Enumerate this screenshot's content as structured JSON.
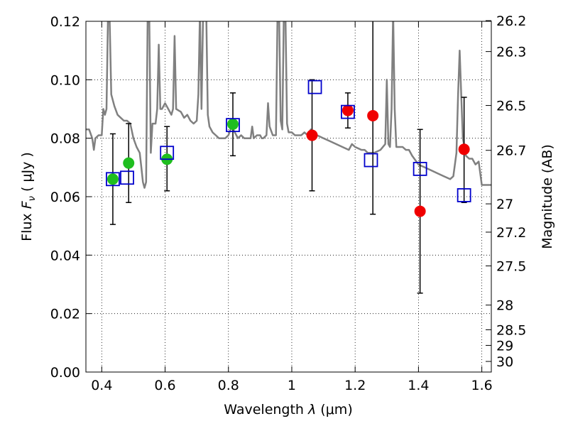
{
  "chart_data": {
    "type": "scatter",
    "xlabel_prefix": "Wavelength ",
    "xlabel_symbol": "λ",
    "xlabel_unit": " (μm)",
    "ylabel_prefix": "Flux ",
    "ylabel_symbol": "F",
    "ylabel_sub": "ν",
    "ylabel_unit": " ( μJy )",
    "y2label": "Magnitude (AB)",
    "xlim": [
      0.35,
      1.63
    ],
    "ylim": [
      0.0,
      0.12
    ],
    "grid": true,
    "x_ticks": [
      {
        "value": 0.4,
        "label": "0.4"
      },
      {
        "value": 0.6,
        "label": "0.6"
      },
      {
        "value": 0.8,
        "label": "0.8"
      },
      {
        "value": 1.0,
        "label": "1"
      },
      {
        "value": 1.2,
        "label": "1.2"
      },
      {
        "value": 1.4,
        "label": "1.4"
      },
      {
        "value": 1.6,
        "label": "1.6"
      }
    ],
    "y_ticks": [
      {
        "value": 0.0,
        "label": "0.00"
      },
      {
        "value": 0.02,
        "label": "0.02"
      },
      {
        "value": 0.04,
        "label": "0.04"
      },
      {
        "value": 0.06,
        "label": "0.06"
      },
      {
        "value": 0.08,
        "label": "0.08"
      },
      {
        "value": 0.1,
        "label": "0.10"
      },
      {
        "value": 0.12,
        "label": "0.12"
      }
    ],
    "mag_ticks": [
      {
        "mag": 26.2,
        "label": "26.2"
      },
      {
        "mag": 26.3,
        "label": "26.3"
      },
      {
        "mag": 26.5,
        "label": "26.5"
      },
      {
        "mag": 26.7,
        "label": "26.7"
      },
      {
        "mag": 27.0,
        "label": "27"
      },
      {
        "mag": 27.2,
        "label": "27.2"
      },
      {
        "mag": 27.5,
        "label": "27.5"
      },
      {
        "mag": 28.0,
        "label": "28"
      },
      {
        "mag": 28.5,
        "label": "28.5"
      },
      {
        "mag": 29.0,
        "label": "29"
      },
      {
        "mag": 30.0,
        "label": "30"
      }
    ],
    "series": [
      {
        "name": "model-sed",
        "kind": "line",
        "color": "#808080",
        "points": [
          [
            0.35,
            0.083
          ],
          [
            0.36,
            0.083
          ],
          [
            0.37,
            0.08
          ],
          [
            0.375,
            0.076
          ],
          [
            0.38,
            0.08
          ],
          [
            0.39,
            0.081
          ],
          [
            0.4,
            0.081
          ],
          [
            0.405,
            0.09
          ],
          [
            0.41,
            0.088
          ],
          [
            0.415,
            0.09
          ],
          [
            0.42,
            0.123
          ],
          [
            0.425,
            0.12
          ],
          [
            0.43,
            0.095
          ],
          [
            0.44,
            0.091
          ],
          [
            0.45,
            0.088
          ],
          [
            0.46,
            0.087
          ],
          [
            0.47,
            0.086
          ],
          [
            0.48,
            0.086
          ],
          [
            0.49,
            0.085
          ],
          [
            0.5,
            0.08
          ],
          [
            0.51,
            0.077
          ],
          [
            0.52,
            0.075
          ],
          [
            0.525,
            0.07
          ],
          [
            0.53,
            0.065
          ],
          [
            0.535,
            0.063
          ],
          [
            0.54,
            0.065
          ],
          [
            0.545,
            0.123
          ],
          [
            0.55,
            0.123
          ],
          [
            0.555,
            0.075
          ],
          [
            0.56,
            0.085
          ],
          [
            0.57,
            0.085
          ],
          [
            0.575,
            0.09
          ],
          [
            0.58,
            0.112
          ],
          [
            0.585,
            0.09
          ],
          [
            0.59,
            0.09
          ],
          [
            0.6,
            0.092
          ],
          [
            0.61,
            0.09
          ],
          [
            0.62,
            0.088
          ],
          [
            0.625,
            0.09
          ],
          [
            0.63,
            0.115
          ],
          [
            0.635,
            0.09
          ],
          [
            0.65,
            0.089
          ],
          [
            0.66,
            0.087
          ],
          [
            0.67,
            0.088
          ],
          [
            0.68,
            0.086
          ],
          [
            0.69,
            0.085
          ],
          [
            0.7,
            0.086
          ],
          [
            0.705,
            0.095
          ],
          [
            0.71,
            0.123
          ],
          [
            0.715,
            0.09
          ],
          [
            0.72,
            0.123
          ],
          [
            0.725,
            0.123
          ],
          [
            0.73,
            0.123
          ],
          [
            0.735,
            0.088
          ],
          [
            0.74,
            0.084
          ],
          [
            0.75,
            0.082
          ],
          [
            0.76,
            0.081
          ],
          [
            0.77,
            0.08
          ],
          [
            0.78,
            0.08
          ],
          [
            0.79,
            0.08
          ],
          [
            0.8,
            0.081
          ],
          [
            0.81,
            0.084
          ],
          [
            0.82,
            0.082
          ],
          [
            0.83,
            0.08
          ],
          [
            0.84,
            0.081
          ],
          [
            0.85,
            0.08
          ],
          [
            0.86,
            0.08
          ],
          [
            0.87,
            0.08
          ],
          [
            0.875,
            0.084
          ],
          [
            0.88,
            0.08
          ],
          [
            0.89,
            0.081
          ],
          [
            0.9,
            0.081
          ],
          [
            0.905,
            0.08
          ],
          [
            0.91,
            0.08
          ],
          [
            0.92,
            0.081
          ],
          [
            0.925,
            0.092
          ],
          [
            0.93,
            0.084
          ],
          [
            0.94,
            0.081
          ],
          [
            0.95,
            0.081
          ],
          [
            0.955,
            0.123
          ],
          [
            0.96,
            0.123
          ],
          [
            0.965,
            0.086
          ],
          [
            0.97,
            0.083
          ],
          [
            0.975,
            0.123
          ],
          [
            0.98,
            0.123
          ],
          [
            0.985,
            0.085
          ],
          [
            0.99,
            0.082
          ],
          [
            1.0,
            0.082
          ],
          [
            1.01,
            0.081
          ],
          [
            1.02,
            0.081
          ],
          [
            1.03,
            0.081
          ],
          [
            1.04,
            0.082
          ],
          [
            1.05,
            0.081
          ],
          [
            1.06,
            0.083
          ],
          [
            1.08,
            0.081
          ],
          [
            1.1,
            0.08
          ],
          [
            1.12,
            0.079
          ],
          [
            1.14,
            0.078
          ],
          [
            1.16,
            0.077
          ],
          [
            1.18,
            0.076
          ],
          [
            1.19,
            0.078
          ],
          [
            1.2,
            0.077
          ],
          [
            1.22,
            0.076
          ],
          [
            1.23,
            0.076
          ],
          [
            1.24,
            0.075
          ],
          [
            1.26,
            0.075
          ],
          [
            1.28,
            0.076
          ],
          [
            1.295,
            0.078
          ],
          [
            1.3,
            0.1
          ],
          [
            1.305,
            0.078
          ],
          [
            1.31,
            0.077
          ],
          [
            1.315,
            0.09
          ],
          [
            1.32,
            0.123
          ],
          [
            1.325,
            0.09
          ],
          [
            1.33,
            0.077
          ],
          [
            1.34,
            0.077
          ],
          [
            1.35,
            0.077
          ],
          [
            1.36,
            0.076
          ],
          [
            1.37,
            0.076
          ],
          [
            1.38,
            0.074
          ],
          [
            1.4,
            0.071
          ],
          [
            1.42,
            0.07
          ],
          [
            1.44,
            0.069
          ],
          [
            1.46,
            0.068
          ],
          [
            1.48,
            0.067
          ],
          [
            1.5,
            0.066
          ],
          [
            1.51,
            0.067
          ],
          [
            1.52,
            0.075
          ],
          [
            1.525,
            0.095
          ],
          [
            1.53,
            0.11
          ],
          [
            1.535,
            0.095
          ],
          [
            1.54,
            0.08
          ],
          [
            1.55,
            0.074
          ],
          [
            1.56,
            0.073
          ],
          [
            1.57,
            0.073
          ],
          [
            1.58,
            0.071
          ],
          [
            1.59,
            0.072
          ],
          [
            1.6,
            0.064
          ],
          [
            1.61,
            0.064
          ],
          [
            1.62,
            0.064
          ],
          [
            1.63,
            0.064
          ]
        ]
      },
      {
        "name": "green-photometry",
        "kind": "circle",
        "color": "#1fbe1f",
        "points": [
          {
            "x": 0.435,
            "y": 0.066,
            "lo": 0.0505,
            "hi": 0.0815
          },
          {
            "x": 0.485,
            "y": 0.0715,
            "lo": 0.058,
            "hi": 0.085
          },
          {
            "x": 0.606,
            "y": 0.0728,
            "lo": 0.062,
            "hi": 0.084
          },
          {
            "x": 0.814,
            "y": 0.0848,
            "lo": 0.074,
            "hi": 0.0955
          }
        ]
      },
      {
        "name": "red-photometry",
        "kind": "circle",
        "color": "#f00000",
        "points": [
          {
            "x": 1.064,
            "y": 0.081,
            "lo": 0.062,
            "hi": 0.1
          },
          {
            "x": 1.177,
            "y": 0.0895,
            "lo": 0.0835,
            "hi": 0.0955
          },
          {
            "x": 1.256,
            "y": 0.0877,
            "lo": 0.054,
            "hi": 0.123
          },
          {
            "x": 1.405,
            "y": 0.055,
            "lo": 0.027,
            "hi": 0.083
          },
          {
            "x": 1.544,
            "y": 0.0762,
            "lo": 0.058,
            "hi": 0.094
          }
        ]
      },
      {
        "name": "model-band-flux",
        "kind": "square",
        "color": "#0000cc",
        "points": [
          {
            "x": 0.435,
            "y": 0.066
          },
          {
            "x": 0.48,
            "y": 0.0665
          },
          {
            "x": 0.606,
            "y": 0.075
          },
          {
            "x": 0.814,
            "y": 0.0845
          },
          {
            "x": 1.073,
            "y": 0.0975
          },
          {
            "x": 1.177,
            "y": 0.089
          },
          {
            "x": 1.25,
            "y": 0.0725
          },
          {
            "x": 1.405,
            "y": 0.0695
          },
          {
            "x": 1.544,
            "y": 0.0605
          }
        ]
      }
    ]
  }
}
